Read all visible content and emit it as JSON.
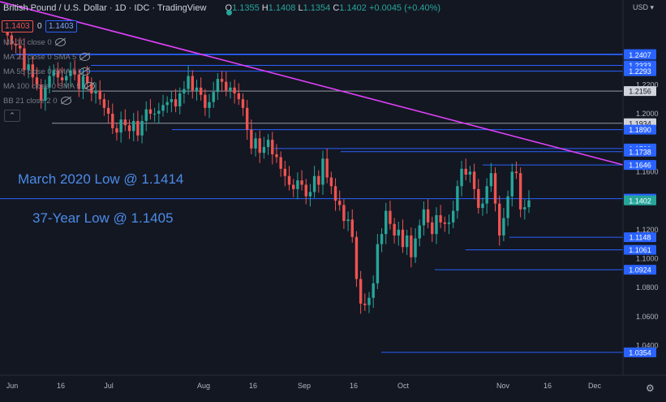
{
  "header": {
    "title": "British Pound / U.S. Dollar · 1D · IDC · TradingView",
    "ohlc": [
      {
        "k": "O",
        "v": "1.1355"
      },
      {
        "k": "H",
        "v": "1.1408"
      },
      {
        "k": "L",
        "v": "1.1354"
      },
      {
        "k": "C",
        "v": "1.1402"
      }
    ],
    "change": "+0.0045 (+0.40%)",
    "bid": "1.1403",
    "spread": "0",
    "ask": "1.1403",
    "currency": "USD"
  },
  "indicators": [
    "MA 10 close 0",
    "MA 21 close 0 SMA 5",
    "MA 55 close 0 SMA 5",
    "MA 100 close 0 SMA 5",
    "BB 21 close 2 0"
  ],
  "annotations": {
    "march_low": "March 2020 Low @ 1.1414",
    "year_low": "37-Year Low @ 1.1405"
  },
  "colors": {
    "background": "#131722",
    "up": "#26a69a",
    "down": "#ef5350",
    "level_line": "#2962ff",
    "trend_line": "#e040fb",
    "label_blue": "#2962ff",
    "label_green": "#26a69a"
  },
  "chart_data": {
    "type": "candlestick",
    "symbol": "GBPUSD",
    "timeframe": "1D",
    "ylim": [
      1.023,
      1.256
    ],
    "y_ticks": [
      "1.2200",
      "1.2000",
      "1.1600",
      "1.1200",
      "1.1000",
      "1.0800",
      "1.0600",
      "1.0400"
    ],
    "x_ticks": [
      "Jun",
      "16",
      "Jul",
      "Aug",
      "16",
      "Sep",
      "16",
      "Oct",
      "Nov",
      "16",
      "Dec"
    ],
    "levels": [
      {
        "price": "1.2411",
        "label": "1.2411",
        "style": "blue"
      },
      {
        "price": "1.2407",
        "label": "1.2407",
        "style": "blue"
      },
      {
        "price": "1.2333",
        "label": "1.2333",
        "style": "blue"
      },
      {
        "price": "1.2293",
        "label": "1.2293",
        "style": "blue"
      },
      {
        "price": "1.2156",
        "label": "1.2156",
        "style": "gray"
      },
      {
        "price": "1.1934",
        "label": "1.1934",
        "style": "gray"
      },
      {
        "price": "1.1890",
        "label": "1.1890",
        "style": "blue"
      },
      {
        "price": "1.1760",
        "label": "1.1760",
        "style": "blue"
      },
      {
        "price": "1.1738",
        "label": "1.1738",
        "style": "blue"
      },
      {
        "price": "1.1646",
        "label": "1.1646",
        "style": "blue"
      },
      {
        "price": "1.1414",
        "label": "1.1414",
        "style": "blue"
      },
      {
        "price": "1.1402",
        "label": "1.1402",
        "style": "green"
      },
      {
        "price": "1.1148",
        "label": "1.1148",
        "style": "blue"
      },
      {
        "price": "1.1061",
        "label": "1.1061",
        "style": "blue"
      },
      {
        "price": "1.0924",
        "label": "1.0924",
        "style": "blue"
      },
      {
        "price": "1.0354",
        "label": "1.0354",
        "style": "blue"
      }
    ],
    "trendline": {
      "from": {
        "date": "2022-05-27",
        "price": 1.256
      },
      "to": {
        "date": "2022-11-28",
        "price": 1.162
      }
    },
    "closes": [
      1.258,
      1.254,
      1.248,
      1.247,
      1.245,
      1.23,
      1.234,
      1.225,
      1.22,
      1.209,
      1.218,
      1.226,
      1.23,
      1.225,
      1.223,
      1.226,
      1.23,
      1.227,
      1.217,
      1.226,
      1.221,
      1.214,
      1.216,
      1.21,
      1.204,
      1.2,
      1.19,
      1.187,
      1.196,
      1.192,
      1.188,
      1.195,
      1.185,
      1.195,
      1.203,
      1.2,
      1.2,
      1.202,
      1.206,
      1.208,
      1.21,
      1.205,
      1.214,
      1.217,
      1.226,
      1.216,
      1.218,
      1.213,
      1.204,
      1.208,
      1.215,
      1.224,
      1.222,
      1.216,
      1.218,
      1.214,
      1.21,
      1.204,
      1.189,
      1.176,
      1.183,
      1.173,
      1.177,
      1.182,
      1.172,
      1.17,
      1.162,
      1.157,
      1.151,
      1.148,
      1.154,
      1.151,
      1.143,
      1.146,
      1.157,
      1.151,
      1.169,
      1.156,
      1.15,
      1.14,
      1.137,
      1.126,
      1.127,
      1.115,
      1.086,
      1.069,
      1.068,
      1.073,
      1.083,
      1.11,
      1.117,
      1.133,
      1.124,
      1.116,
      1.12,
      1.108,
      1.116,
      1.101,
      1.114,
      1.123,
      1.134,
      1.125,
      1.117,
      1.13,
      1.125,
      1.124,
      1.125,
      1.133,
      1.15,
      1.162,
      1.158,
      1.16,
      1.148,
      1.135,
      1.138,
      1.15,
      1.159,
      1.138,
      1.116,
      1.128,
      1.143,
      1.16,
      1.159,
      1.134,
      1.1355,
      1.1402
    ]
  }
}
